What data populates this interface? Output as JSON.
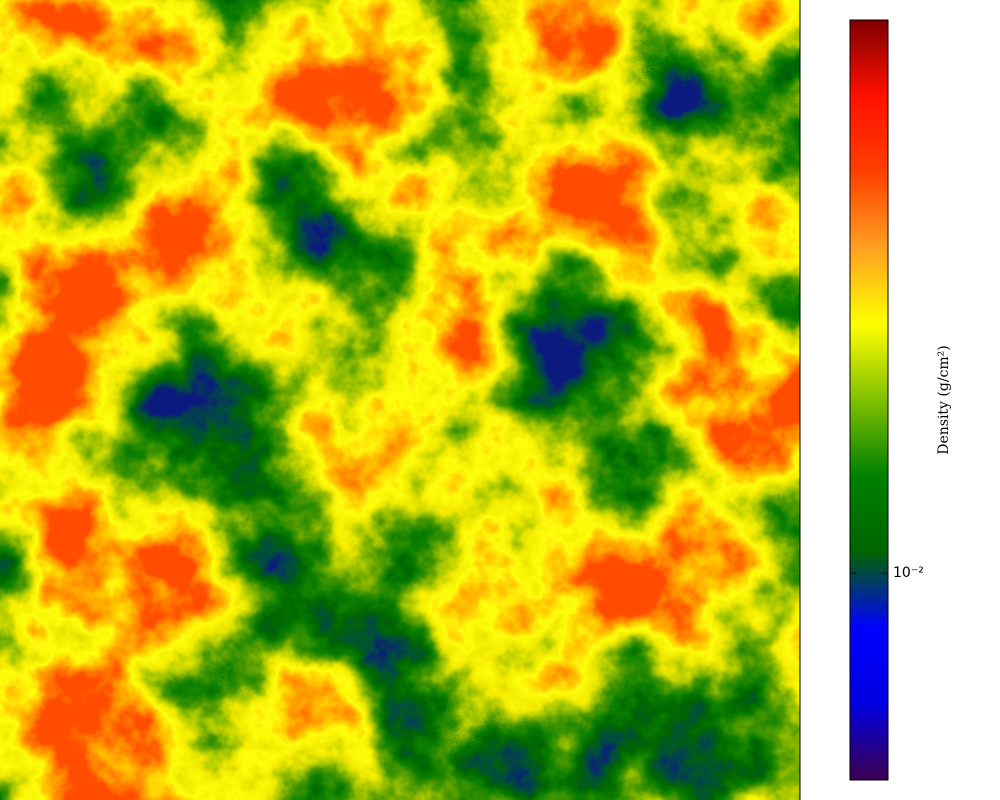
{
  "chart_data": {
    "type": "heatmap",
    "colorbar": {
      "label": "Density (g/cm²)",
      "scale": "log",
      "clim": [
        0.003,
        0.25
      ],
      "ticks": [
        {
          "value": 0.01,
          "label": "10⁻²"
        }
      ],
      "colormap": [
        "#3c0050",
        "#0000e0",
        "#0000ff",
        "#006400",
        "#008000",
        "#80c000",
        "#ffff00",
        "#ffa020",
        "#ff4000",
        "#ff1000",
        "#800000"
      ]
    }
  }
}
